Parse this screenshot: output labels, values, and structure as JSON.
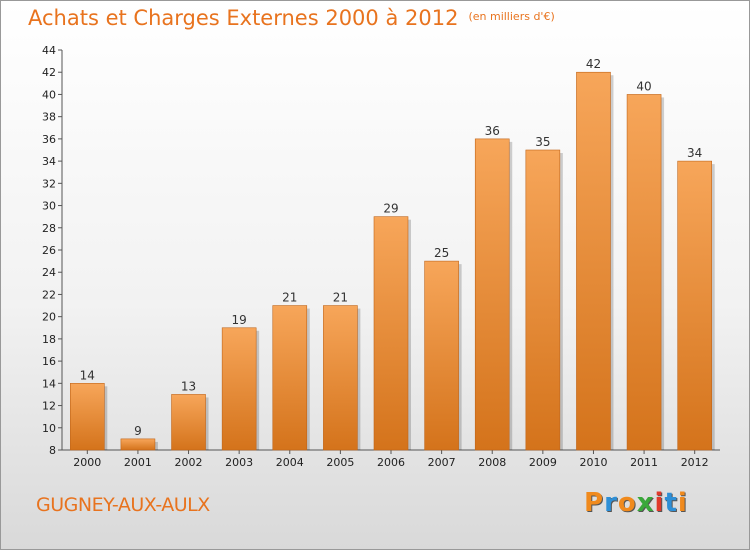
{
  "header": {
    "title": "Achats et Charges Externes 2000 à 2012",
    "subtitle": "(en milliers d'€)"
  },
  "footer": {
    "place": "GUGNEY-AUX-AULX",
    "logo_text": "Proxiti",
    "logo_colors": [
      "#f08a1d",
      "#2e8fd6",
      "#f08a1d",
      "#3aa83a",
      "#e0392b",
      "#2e8fd6",
      "#f08a1d"
    ]
  },
  "colors": {
    "bar_top": "#f7a65a",
    "bar_bottom": "#d4731b",
    "bar_border": "#c0651a"
  },
  "chart_data": {
    "type": "bar",
    "title": "Achats et Charges Externes 2000 à 2012",
    "subtitle": "(en milliers d'€)",
    "categories": [
      "2000",
      "2001",
      "2002",
      "2003",
      "2004",
      "2005",
      "2006",
      "2007",
      "2008",
      "2009",
      "2010",
      "2011",
      "2012"
    ],
    "values": [
      14,
      9,
      13,
      19,
      21,
      21,
      29,
      25,
      36,
      35,
      42,
      40,
      34
    ],
    "ylim": [
      8,
      44
    ],
    "yticks": [
      8,
      10,
      12,
      14,
      16,
      18,
      20,
      22,
      24,
      26,
      28,
      30,
      32,
      34,
      36,
      38,
      40,
      42,
      44
    ],
    "grid": false,
    "legend": "none",
    "data_labels": true
  }
}
